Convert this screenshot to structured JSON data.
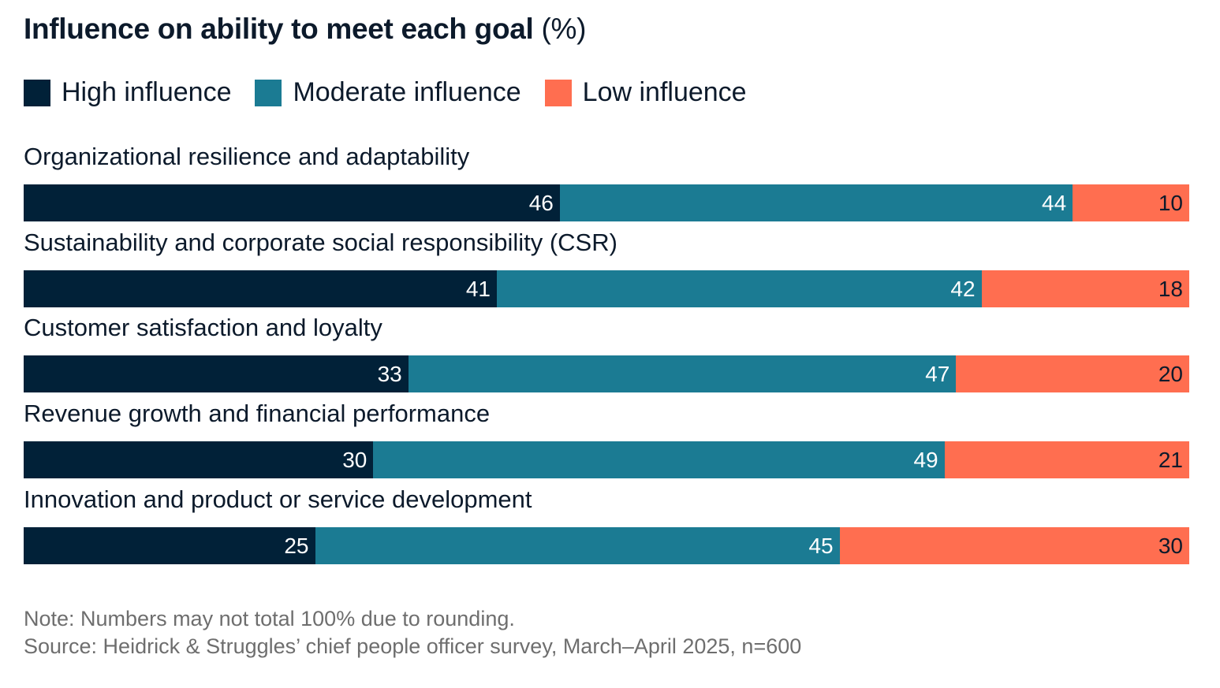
{
  "chart_data": {
    "type": "bar",
    "orientation": "horizontal",
    "stacked": true,
    "title": "Influence on ability to meet each goal",
    "title_unit": "(%)",
    "categories": [
      "Organizational resilience and adaptability",
      "Sustainability and corporate social responsibility (CSR)",
      "Customer satisfaction and loyalty",
      "Revenue growth and financial performance",
      "Innovation and product or service development"
    ],
    "series": [
      {
        "name": "High influence",
        "color": "#012138",
        "values": [
          46,
          41,
          33,
          30,
          25
        ]
      },
      {
        "name": "Moderate influence",
        "color": "#1b7b93",
        "values": [
          44,
          42,
          47,
          49,
          45
        ]
      },
      {
        "name": "Low influence",
        "color": "#ff6e50",
        "values": [
          10,
          18,
          20,
          21,
          30
        ]
      }
    ],
    "legend_position": "top-left",
    "grid": false
  },
  "notes": {
    "note": "Note: Numbers may not total 100% due to rounding.",
    "source": "Source: Heidrick & Struggles’ chief people officer survey, March–April 2025, n=600"
  }
}
